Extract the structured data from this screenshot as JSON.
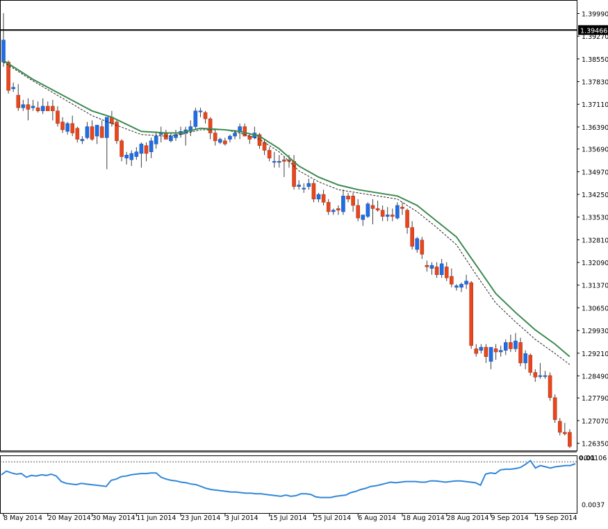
{
  "chart_data": [
    {
      "type": "candlestick",
      "title": "",
      "colors": {
        "bull": "#1e6ee6",
        "bear": "#e8461e",
        "wick": "#3c3c3c",
        "ma": "#3a8a4e",
        "ma2": "#222222",
        "hline": "#000000",
        "indicator": "#2f87d9"
      },
      "ylim": [
        1.2612,
        1.4042
      ],
      "y_ticks": [
        "1.39990",
        "1.39270",
        "1.38550",
        "1.37830",
        "1.37110",
        "1.36390",
        "1.35690",
        "1.34970",
        "1.34250",
        "1.33530",
        "1.32810",
        "1.32090",
        "1.31370",
        "1.30650",
        "1.29930",
        "1.29210",
        "1.28490",
        "1.27790",
        "1.27070",
        "1.26350"
      ],
      "x_ticks": [
        "8 May 2014",
        "20 May 2014",
        "30 May 2014",
        "11 Jun 2014",
        "23 Jun 2014",
        "3 Jul 2014",
        "15 Jul 2014",
        "25 Jul 2014",
        "6 Aug 2014",
        "18 Aug 2014",
        "28 Aug 2014",
        "9 Sep 2014",
        "19 Sep 2014"
      ],
      "horizontal_line": {
        "value": 1.39466,
        "label": "1.39466"
      },
      "candles": [
        {
          "o": 1.3845,
          "h": 1.4,
          "l": 1.383,
          "c": 1.3915
        },
        {
          "o": 1.3845,
          "h": 1.385,
          "l": 1.3745,
          "c": 1.3755
        },
        {
          "o": 1.376,
          "h": 1.378,
          "l": 1.375,
          "c": 1.3765
        },
        {
          "o": 1.374,
          "h": 1.3775,
          "l": 1.369,
          "c": 1.37
        },
        {
          "o": 1.37,
          "h": 1.3725,
          "l": 1.369,
          "c": 1.371
        },
        {
          "o": 1.371,
          "h": 1.373,
          "l": 1.366,
          "c": 1.3695
        },
        {
          "o": 1.37,
          "h": 1.3725,
          "l": 1.369,
          "c": 1.3705
        },
        {
          "o": 1.37,
          "h": 1.372,
          "l": 1.3685,
          "c": 1.369
        },
        {
          "o": 1.369,
          "h": 1.373,
          "l": 1.368,
          "c": 1.3705
        },
        {
          "o": 1.3705,
          "h": 1.372,
          "l": 1.369,
          "c": 1.369
        },
        {
          "o": 1.3705,
          "h": 1.3725,
          "l": 1.366,
          "c": 1.369
        },
        {
          "o": 1.369,
          "h": 1.3705,
          "l": 1.364,
          "c": 1.365
        },
        {
          "o": 1.3655,
          "h": 1.367,
          "l": 1.362,
          "c": 1.363
        },
        {
          "o": 1.3625,
          "h": 1.3655,
          "l": 1.3615,
          "c": 1.365
        },
        {
          "o": 1.365,
          "h": 1.3675,
          "l": 1.361,
          "c": 1.362
        },
        {
          "o": 1.3635,
          "h": 1.364,
          "l": 1.359,
          "c": 1.36
        },
        {
          "o": 1.3595,
          "h": 1.361,
          "l": 1.3585,
          "c": 1.36
        },
        {
          "o": 1.3605,
          "h": 1.3655,
          "l": 1.36,
          "c": 1.364
        },
        {
          "o": 1.364,
          "h": 1.366,
          "l": 1.3595,
          "c": 1.36
        },
        {
          "o": 1.361,
          "h": 1.3645,
          "l": 1.3585,
          "c": 1.3645
        },
        {
          "o": 1.364,
          "h": 1.366,
          "l": 1.361,
          "c": 1.3605
        },
        {
          "o": 1.3605,
          "h": 1.367,
          "l": 1.3505,
          "c": 1.367
        },
        {
          "o": 1.367,
          "h": 1.369,
          "l": 1.364,
          "c": 1.365
        },
        {
          "o": 1.3655,
          "h": 1.366,
          "l": 1.3585,
          "c": 1.3595
        },
        {
          "o": 1.3595,
          "h": 1.36,
          "l": 1.353,
          "c": 1.3545
        },
        {
          "o": 1.354,
          "h": 1.356,
          "l": 1.352,
          "c": 1.355
        },
        {
          "o": 1.3535,
          "h": 1.3565,
          "l": 1.3515,
          "c": 1.3555
        },
        {
          "o": 1.3545,
          "h": 1.3575,
          "l": 1.3535,
          "c": 1.356
        },
        {
          "o": 1.3555,
          "h": 1.359,
          "l": 1.351,
          "c": 1.3585
        },
        {
          "o": 1.358,
          "h": 1.359,
          "l": 1.353,
          "c": 1.3555
        },
        {
          "o": 1.356,
          "h": 1.3605,
          "l": 1.354,
          "c": 1.3595
        },
        {
          "o": 1.3585,
          "h": 1.3625,
          "l": 1.357,
          "c": 1.361
        },
        {
          "o": 1.3615,
          "h": 1.364,
          "l": 1.359,
          "c": 1.362
        },
        {
          "o": 1.362,
          "h": 1.363,
          "l": 1.36,
          "c": 1.36
        },
        {
          "o": 1.3595,
          "h": 1.362,
          "l": 1.359,
          "c": 1.361
        },
        {
          "o": 1.3605,
          "h": 1.363,
          "l": 1.3595,
          "c": 1.3615
        },
        {
          "o": 1.3615,
          "h": 1.364,
          "l": 1.3605,
          "c": 1.3625
        },
        {
          "o": 1.362,
          "h": 1.364,
          "l": 1.358,
          "c": 1.363
        },
        {
          "o": 1.3625,
          "h": 1.366,
          "l": 1.361,
          "c": 1.364
        },
        {
          "o": 1.364,
          "h": 1.37,
          "l": 1.363,
          "c": 1.369
        },
        {
          "o": 1.369,
          "h": 1.37,
          "l": 1.367,
          "c": 1.369
        },
        {
          "o": 1.3685,
          "h": 1.369,
          "l": 1.365,
          "c": 1.3665
        },
        {
          "o": 1.3665,
          "h": 1.367,
          "l": 1.36,
          "c": 1.362
        },
        {
          "o": 1.362,
          "h": 1.363,
          "l": 1.358,
          "c": 1.3595
        },
        {
          "o": 1.359,
          "h": 1.3605,
          "l": 1.3585,
          "c": 1.36
        },
        {
          "o": 1.3595,
          "h": 1.3605,
          "l": 1.358,
          "c": 1.3585
        },
        {
          "o": 1.36,
          "h": 1.3615,
          "l": 1.359,
          "c": 1.361
        },
        {
          "o": 1.361,
          "h": 1.363,
          "l": 1.36,
          "c": 1.362
        },
        {
          "o": 1.3625,
          "h": 1.365,
          "l": 1.36,
          "c": 1.364
        },
        {
          "o": 1.364,
          "h": 1.365,
          "l": 1.361,
          "c": 1.361
        },
        {
          "o": 1.361,
          "h": 1.362,
          "l": 1.3585,
          "c": 1.36
        },
        {
          "o": 1.3605,
          "h": 1.364,
          "l": 1.36,
          "c": 1.362
        },
        {
          "o": 1.3615,
          "h": 1.362,
          "l": 1.357,
          "c": 1.358
        },
        {
          "o": 1.359,
          "h": 1.36,
          "l": 1.355,
          "c": 1.3565
        },
        {
          "o": 1.3565,
          "h": 1.3575,
          "l": 1.353,
          "c": 1.354
        },
        {
          "o": 1.353,
          "h": 1.356,
          "l": 1.351,
          "c": 1.353
        },
        {
          "o": 1.353,
          "h": 1.355,
          "l": 1.351,
          "c": 1.353
        },
        {
          "o": 1.3535,
          "h": 1.3545,
          "l": 1.348,
          "c": 1.353
        },
        {
          "o": 1.3535,
          "h": 1.355,
          "l": 1.351,
          "c": 1.353
        },
        {
          "o": 1.353,
          "h": 1.355,
          "l": 1.344,
          "c": 1.345
        },
        {
          "o": 1.345,
          "h": 1.347,
          "l": 1.344,
          "c": 1.3455
        },
        {
          "o": 1.3445,
          "h": 1.346,
          "l": 1.343,
          "c": 1.3445
        },
        {
          "o": 1.345,
          "h": 1.3475,
          "l": 1.344,
          "c": 1.346
        },
        {
          "o": 1.346,
          "h": 1.347,
          "l": 1.34,
          "c": 1.341
        },
        {
          "o": 1.341,
          "h": 1.343,
          "l": 1.34,
          "c": 1.3425
        },
        {
          "o": 1.3425,
          "h": 1.344,
          "l": 1.339,
          "c": 1.34
        },
        {
          "o": 1.34,
          "h": 1.341,
          "l": 1.336,
          "c": 1.337
        },
        {
          "o": 1.337,
          "h": 1.338,
          "l": 1.336,
          "c": 1.3375
        },
        {
          "o": 1.338,
          "h": 1.339,
          "l": 1.336,
          "c": 1.3375
        },
        {
          "o": 1.337,
          "h": 1.344,
          "l": 1.336,
          "c": 1.342
        },
        {
          "o": 1.342,
          "h": 1.343,
          "l": 1.34,
          "c": 1.341
        },
        {
          "o": 1.342,
          "h": 1.343,
          "l": 1.337,
          "c": 1.339
        },
        {
          "o": 1.339,
          "h": 1.341,
          "l": 1.334,
          "c": 1.335
        },
        {
          "o": 1.3345,
          "h": 1.336,
          "l": 1.3325,
          "c": 1.336
        },
        {
          "o": 1.3355,
          "h": 1.34,
          "l": 1.335,
          "c": 1.3395
        },
        {
          "o": 1.339,
          "h": 1.341,
          "l": 1.333,
          "c": 1.338
        },
        {
          "o": 1.338,
          "h": 1.3405,
          "l": 1.337,
          "c": 1.3375
        },
        {
          "o": 1.3375,
          "h": 1.339,
          "l": 1.334,
          "c": 1.3355
        },
        {
          "o": 1.3355,
          "h": 1.3385,
          "l": 1.334,
          "c": 1.336
        },
        {
          "o": 1.336,
          "h": 1.338,
          "l": 1.334,
          "c": 1.3355
        },
        {
          "o": 1.335,
          "h": 1.34,
          "l": 1.3345,
          "c": 1.339
        },
        {
          "o": 1.3385,
          "h": 1.34,
          "l": 1.336,
          "c": 1.338
        },
        {
          "o": 1.3375,
          "h": 1.338,
          "l": 1.33,
          "c": 1.332
        },
        {
          "o": 1.332,
          "h": 1.334,
          "l": 1.325,
          "c": 1.326
        },
        {
          "o": 1.325,
          "h": 1.329,
          "l": 1.324,
          "c": 1.3285
        },
        {
          "o": 1.328,
          "h": 1.329,
          "l": 1.322,
          "c": 1.3235
        },
        {
          "o": 1.32,
          "h": 1.3215,
          "l": 1.318,
          "c": 1.3195
        },
        {
          "o": 1.319,
          "h": 1.321,
          "l": 1.317,
          "c": 1.32
        },
        {
          "o": 1.3195,
          "h": 1.321,
          "l": 1.316,
          "c": 1.317
        },
        {
          "o": 1.317,
          "h": 1.322,
          "l": 1.316,
          "c": 1.3205
        },
        {
          "o": 1.3195,
          "h": 1.321,
          "l": 1.315,
          "c": 1.316
        },
        {
          "o": 1.3165,
          "h": 1.319,
          "l": 1.313,
          "c": 1.314
        },
        {
          "o": 1.313,
          "h": 1.314,
          "l": 1.312,
          "c": 1.3135
        },
        {
          "o": 1.313,
          "h": 1.3145,
          "l": 1.3115,
          "c": 1.314
        },
        {
          "o": 1.314,
          "h": 1.317,
          "l": 1.3125,
          "c": 1.315
        },
        {
          "o": 1.3145,
          "h": 1.315,
          "l": 1.2935,
          "c": 1.2945
        },
        {
          "o": 1.2935,
          "h": 1.295,
          "l": 1.291,
          "c": 1.292
        },
        {
          "o": 1.293,
          "h": 1.295,
          "l": 1.292,
          "c": 1.294
        },
        {
          "o": 1.294,
          "h": 1.295,
          "l": 1.289,
          "c": 1.291
        },
        {
          "o": 1.2895,
          "h": 1.294,
          "l": 1.287,
          "c": 1.294
        },
        {
          "o": 1.2935,
          "h": 1.295,
          "l": 1.29,
          "c": 1.2925
        },
        {
          "o": 1.2925,
          "h": 1.2945,
          "l": 1.291,
          "c": 1.293
        },
        {
          "o": 1.293,
          "h": 1.2965,
          "l": 1.2915,
          "c": 1.2955
        },
        {
          "o": 1.2955,
          "h": 1.298,
          "l": 1.2925,
          "c": 1.2935
        },
        {
          "o": 1.2935,
          "h": 1.2985,
          "l": 1.2925,
          "c": 1.296
        },
        {
          "o": 1.2955,
          "h": 1.297,
          "l": 1.288,
          "c": 1.289
        },
        {
          "o": 1.289,
          "h": 1.293,
          "l": 1.287,
          "c": 1.292
        },
        {
          "o": 1.2915,
          "h": 1.292,
          "l": 1.285,
          "c": 1.286
        },
        {
          "o": 1.286,
          "h": 1.287,
          "l": 1.283,
          "c": 1.2845
        },
        {
          "o": 1.285,
          "h": 1.289,
          "l": 1.284,
          "c": 1.285
        },
        {
          "o": 1.285,
          "h": 1.2865,
          "l": 1.284,
          "c": 1.285
        },
        {
          "o": 1.285,
          "h": 1.286,
          "l": 1.277,
          "c": 1.278
        },
        {
          "o": 1.278,
          "h": 1.279,
          "l": 1.27,
          "c": 1.271
        },
        {
          "o": 1.2705,
          "h": 1.2715,
          "l": 1.266,
          "c": 1.267
        },
        {
          "o": 1.267,
          "h": 1.27,
          "l": 1.266,
          "c": 1.2665
        },
        {
          "o": 1.267,
          "h": 1.268,
          "l": 1.262,
          "c": 1.2625
        }
      ],
      "ma_series": [
        {
          "i": 0,
          "v": 1.385
        },
        {
          "i": 6,
          "v": 1.379
        },
        {
          "i": 12,
          "v": 1.374
        },
        {
          "i": 18,
          "v": 1.369
        },
        {
          "i": 22,
          "v": 1.367
        },
        {
          "i": 28,
          "v": 1.3625
        },
        {
          "i": 33,
          "v": 1.362
        },
        {
          "i": 36,
          "v": 1.362
        },
        {
          "i": 40,
          "v": 1.3635
        },
        {
          "i": 45,
          "v": 1.363
        },
        {
          "i": 48,
          "v": 1.3625
        },
        {
          "i": 52,
          "v": 1.361
        },
        {
          "i": 56,
          "v": 1.357
        },
        {
          "i": 60,
          "v": 1.3515
        },
        {
          "i": 64,
          "v": 1.348
        },
        {
          "i": 68,
          "v": 1.3455
        },
        {
          "i": 72,
          "v": 1.344
        },
        {
          "i": 76,
          "v": 1.343
        },
        {
          "i": 80,
          "v": 1.342
        },
        {
          "i": 84,
          "v": 1.339
        },
        {
          "i": 88,
          "v": 1.334
        },
        {
          "i": 92,
          "v": 1.329
        },
        {
          "i": 96,
          "v": 1.32
        },
        {
          "i": 100,
          "v": 1.311
        },
        {
          "i": 104,
          "v": 1.305
        },
        {
          "i": 108,
          "v": 1.2995
        },
        {
          "i": 112,
          "v": 1.295
        },
        {
          "i": 115,
          "v": 1.291
        }
      ],
      "ma2_series": [
        {
          "i": 0,
          "v": 1.3845
        },
        {
          "i": 6,
          "v": 1.3785
        },
        {
          "i": 12,
          "v": 1.373
        },
        {
          "i": 18,
          "v": 1.3675
        },
        {
          "i": 22,
          "v": 1.365
        },
        {
          "i": 28,
          "v": 1.3615
        },
        {
          "i": 33,
          "v": 1.361
        },
        {
          "i": 36,
          "v": 1.3615
        },
        {
          "i": 40,
          "v": 1.363
        },
        {
          "i": 45,
          "v": 1.363
        },
        {
          "i": 48,
          "v": 1.362
        },
        {
          "i": 52,
          "v": 1.36
        },
        {
          "i": 56,
          "v": 1.356
        },
        {
          "i": 60,
          "v": 1.35
        },
        {
          "i": 64,
          "v": 1.3465
        },
        {
          "i": 68,
          "v": 1.344
        },
        {
          "i": 72,
          "v": 1.343
        },
        {
          "i": 76,
          "v": 1.342
        },
        {
          "i": 80,
          "v": 1.341
        },
        {
          "i": 84,
          "v": 1.337
        },
        {
          "i": 88,
          "v": 1.332
        },
        {
          "i": 92,
          "v": 1.3265
        },
        {
          "i": 96,
          "v": 1.317
        },
        {
          "i": 100,
          "v": 1.308
        },
        {
          "i": 104,
          "v": 1.302
        },
        {
          "i": 108,
          "v": 1.2965
        },
        {
          "i": 112,
          "v": 1.292
        },
        {
          "i": 115,
          "v": 1.2885
        }
      ]
    },
    {
      "type": "line",
      "title": "",
      "ylim": [
        0.0025,
        0.0112
      ],
      "y_ticks": [
        "0.0106",
        "0.0037"
      ],
      "top_label": "0.0106",
      "zero_label": "0.01",
      "values": [
        0.0085,
        0.0091,
        0.0088,
        0.0086,
        0.0087,
        0.0081,
        0.0084,
        0.0083,
        0.0085,
        0.0084,
        0.0086,
        0.0083,
        0.0074,
        0.0071,
        0.007,
        0.0069,
        0.0071,
        0.007,
        0.0069,
        0.0068,
        0.0067,
        0.0066,
        0.0076,
        0.0078,
        0.0082,
        0.0083,
        0.0085,
        0.0086,
        0.0087,
        0.0087,
        0.0088,
        0.0088,
        0.0081,
        0.0078,
        0.0076,
        0.0075,
        0.0073,
        0.0072,
        0.007,
        0.0069,
        0.0066,
        0.0063,
        0.0061,
        0.006,
        0.0059,
        0.0058,
        0.0057,
        0.0057,
        0.0056,
        0.0055,
        0.0055,
        0.0054,
        0.0054,
        0.0053,
        0.0052,
        0.0051,
        0.005,
        0.0052,
        0.005,
        0.0051,
        0.0054,
        0.0054,
        0.0053,
        0.0049,
        0.0048,
        0.0048,
        0.0048,
        0.005,
        0.0051,
        0.0052,
        0.0056,
        0.0058,
        0.0061,
        0.0063,
        0.0066,
        0.0067,
        0.0069,
        0.0071,
        0.0073,
        0.0072,
        0.0073,
        0.0074,
        0.0074,
        0.0074,
        0.0073,
        0.0073,
        0.0075,
        0.0075,
        0.0074,
        0.0073,
        0.0074,
        0.0075,
        0.0075,
        0.0074,
        0.0073,
        0.0072,
        0.0068,
        0.0086,
        0.0088,
        0.0087,
        0.0093,
        0.0094,
        0.0094,
        0.0095,
        0.0097,
        0.0102,
        0.0108,
        0.0096,
        0.01,
        0.0098,
        0.0096,
        0.0098,
        0.0099,
        0.01,
        0.01,
        0.0103
      ]
    }
  ]
}
